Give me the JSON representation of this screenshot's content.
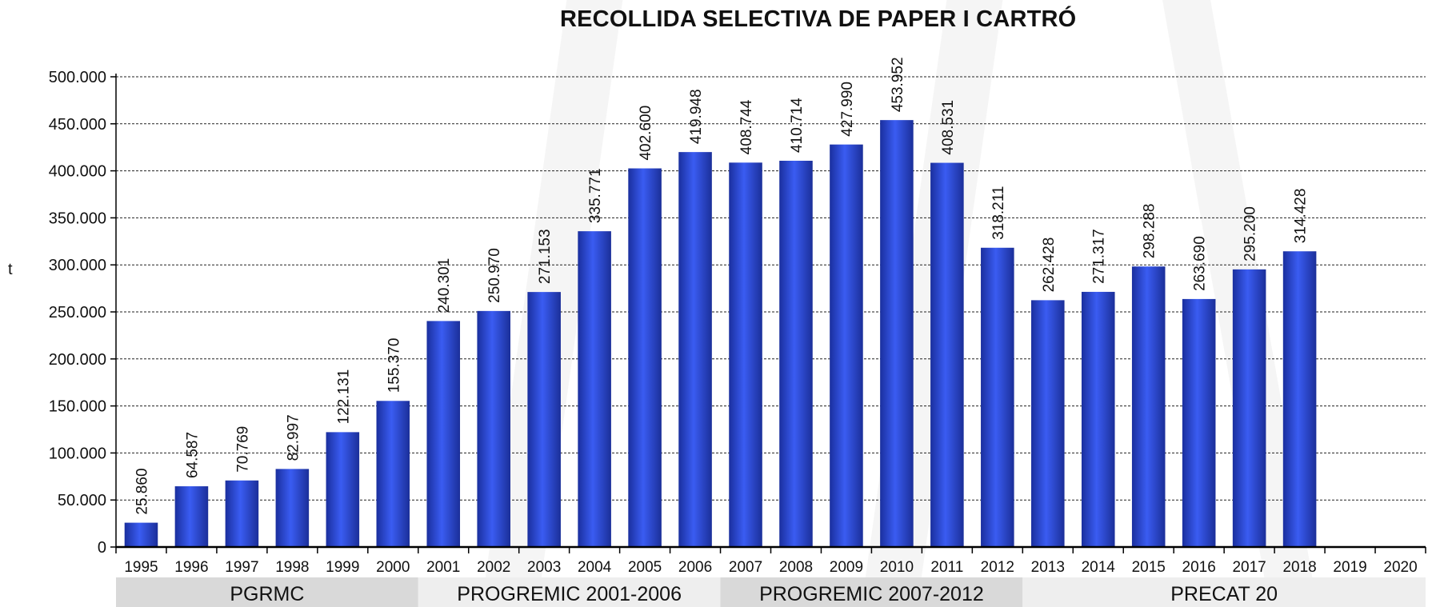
{
  "chart_data": {
    "type": "bar",
    "title": "RECOLLIDA SELECTIVA DE PAPER I CARTRÓ",
    "ylabel": "t",
    "xlabel": "",
    "ylim": [
      0,
      500000
    ],
    "yticks": [
      0,
      50000,
      100000,
      150000,
      200000,
      250000,
      300000,
      350000,
      400000,
      450000,
      500000
    ],
    "ytick_labels": [
      "0",
      "50.000",
      "100.000",
      "150.000",
      "200.000",
      "250.000",
      "300.000",
      "350.000",
      "400.000",
      "450.000",
      "500.000"
    ],
    "grid": true,
    "categories": [
      "1995",
      "1996",
      "1997",
      "1998",
      "1999",
      "2000",
      "2001",
      "2002",
      "2003",
      "2004",
      "2005",
      "2006",
      "2007",
      "2008",
      "2009",
      "2010",
      "2011",
      "2012",
      "2013",
      "2014",
      "2015",
      "2016",
      "2017",
      "2018",
      "2019",
      "2020"
    ],
    "values": [
      25860,
      64587,
      70769,
      82997,
      122131,
      155370,
      240301,
      250970,
      271153,
      335771,
      402600,
      419948,
      408744,
      410714,
      427990,
      453952,
      408531,
      318211,
      262428,
      271317,
      298288,
      263690,
      295200,
      314428,
      null,
      null
    ],
    "value_labels": [
      "25.860",
      "64.587",
      "70.769",
      "82.997",
      "122.131",
      "155.370",
      "240.301",
      "250.970",
      "271.153",
      "335.771",
      "402.600",
      "419.948",
      "408.744",
      "410.714",
      "427.990",
      "453.952",
      "408.531",
      "318.211",
      "262.428",
      "271.317",
      "298.288",
      "263.690",
      "295.200",
      "314.428",
      "",
      ""
    ],
    "bar_color": "#2e4fe0",
    "periods": [
      {
        "label": "PGRMC",
        "from": "1995",
        "to": "2000",
        "color": "#d9d9d9"
      },
      {
        "label": "PROGREMIC 2001-2006",
        "from": "2001",
        "to": "2006",
        "color": "#eeeeee"
      },
      {
        "label": "PROGREMIC 2007-2012",
        "from": "2007",
        "to": "2012",
        "color": "#d9d9d9"
      },
      {
        "label": "PRECAT 20",
        "from": "2013",
        "to": "2020",
        "color": "#eeeeee"
      }
    ]
  }
}
